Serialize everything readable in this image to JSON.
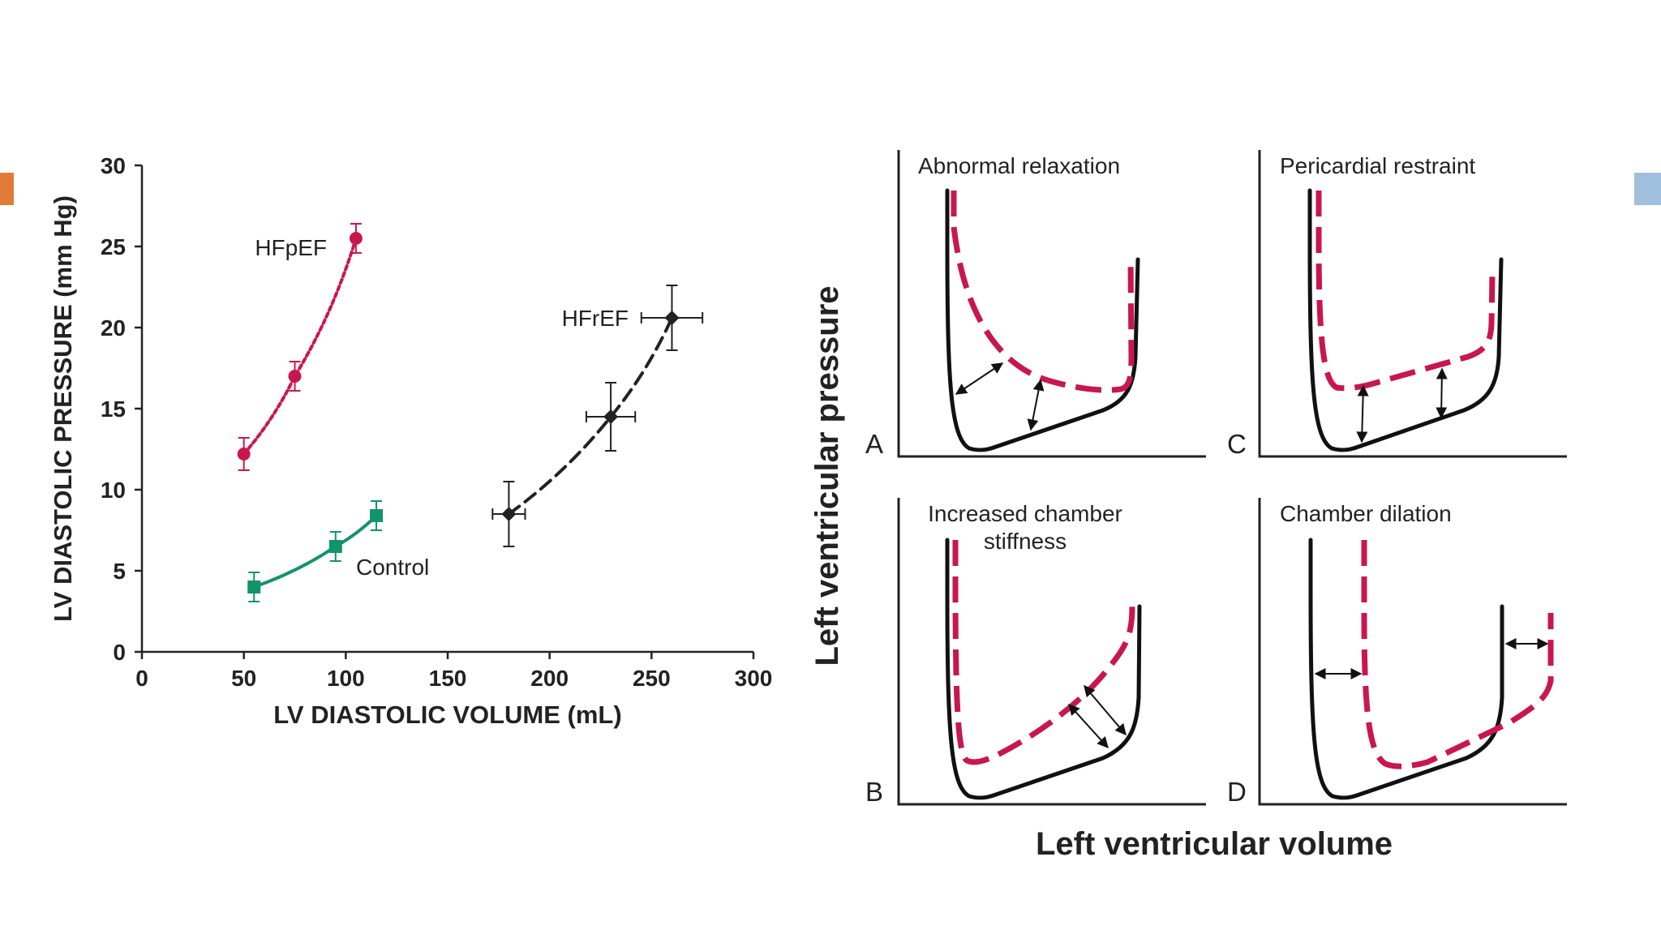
{
  "chart_data": [
    {
      "type": "line",
      "xlabel": "LV DIASTOLIC VOLUME (mL)",
      "ylabel": "LV DIASTOLIC PRESSURE (mm Hg)",
      "xlim": [
        0,
        300
      ],
      "ylim": [
        0,
        30
      ],
      "xticks": [
        "0",
        "50",
        "100",
        "150",
        "200",
        "250",
        "300"
      ],
      "yticks": [
        "0",
        "5",
        "10",
        "15",
        "20",
        "25",
        "30"
      ],
      "grid": false,
      "series": [
        {
          "name": "HFpEF",
          "color": "#c8174f",
          "marker": "circle",
          "line_style": "dotted",
          "points": [
            {
              "x": 50,
              "y": 12.2,
              "yerr": 1.0,
              "xerr": 0
            },
            {
              "x": 75,
              "y": 17.0,
              "yerr": 0.9,
              "xerr": 0
            },
            {
              "x": 105,
              "y": 25.5,
              "yerr": 0.9,
              "xerr": 0
            }
          ]
        },
        {
          "name": "Control",
          "color": "#13936a",
          "marker": "square",
          "line_style": "solid",
          "points": [
            {
              "x": 55,
              "y": 4.0,
              "yerr": 0.9,
              "xerr": 0
            },
            {
              "x": 95,
              "y": 6.5,
              "yerr": 0.9,
              "xerr": 0
            },
            {
              "x": 115,
              "y": 8.4,
              "yerr": 0.9,
              "xerr": 0
            }
          ]
        },
        {
          "name": "HFrEF",
          "color": "#222222",
          "marker": "diamond",
          "line_style": "dashed",
          "points": [
            {
              "x": 180,
              "y": 8.5,
              "yerr": 2.0,
              "xerr": 8
            },
            {
              "x": 230,
              "y": 14.5,
              "yerr": 2.1,
              "xerr": 12
            },
            {
              "x": 260,
              "y": 20.6,
              "yerr": 2.0,
              "xerr": 15
            }
          ]
        }
      ]
    },
    {
      "type": "line",
      "xlabel": "Left ventricular volume",
      "ylabel": "Left ventricular pressure",
      "panels": [
        {
          "letter": "A",
          "title_lines": [
            "Abnormal relaxation"
          ]
        },
        {
          "letter": "C",
          "title_lines": [
            "Pericardial restraint"
          ]
        },
        {
          "letter": "B",
          "title_lines": [
            "Increased chamber",
            "stiffness"
          ]
        },
        {
          "letter": "D",
          "title_lines": [
            "Chamber dilation"
          ]
        }
      ],
      "curve_colors": {
        "normal": "#111111",
        "altered": "#c8174f"
      }
    }
  ]
}
